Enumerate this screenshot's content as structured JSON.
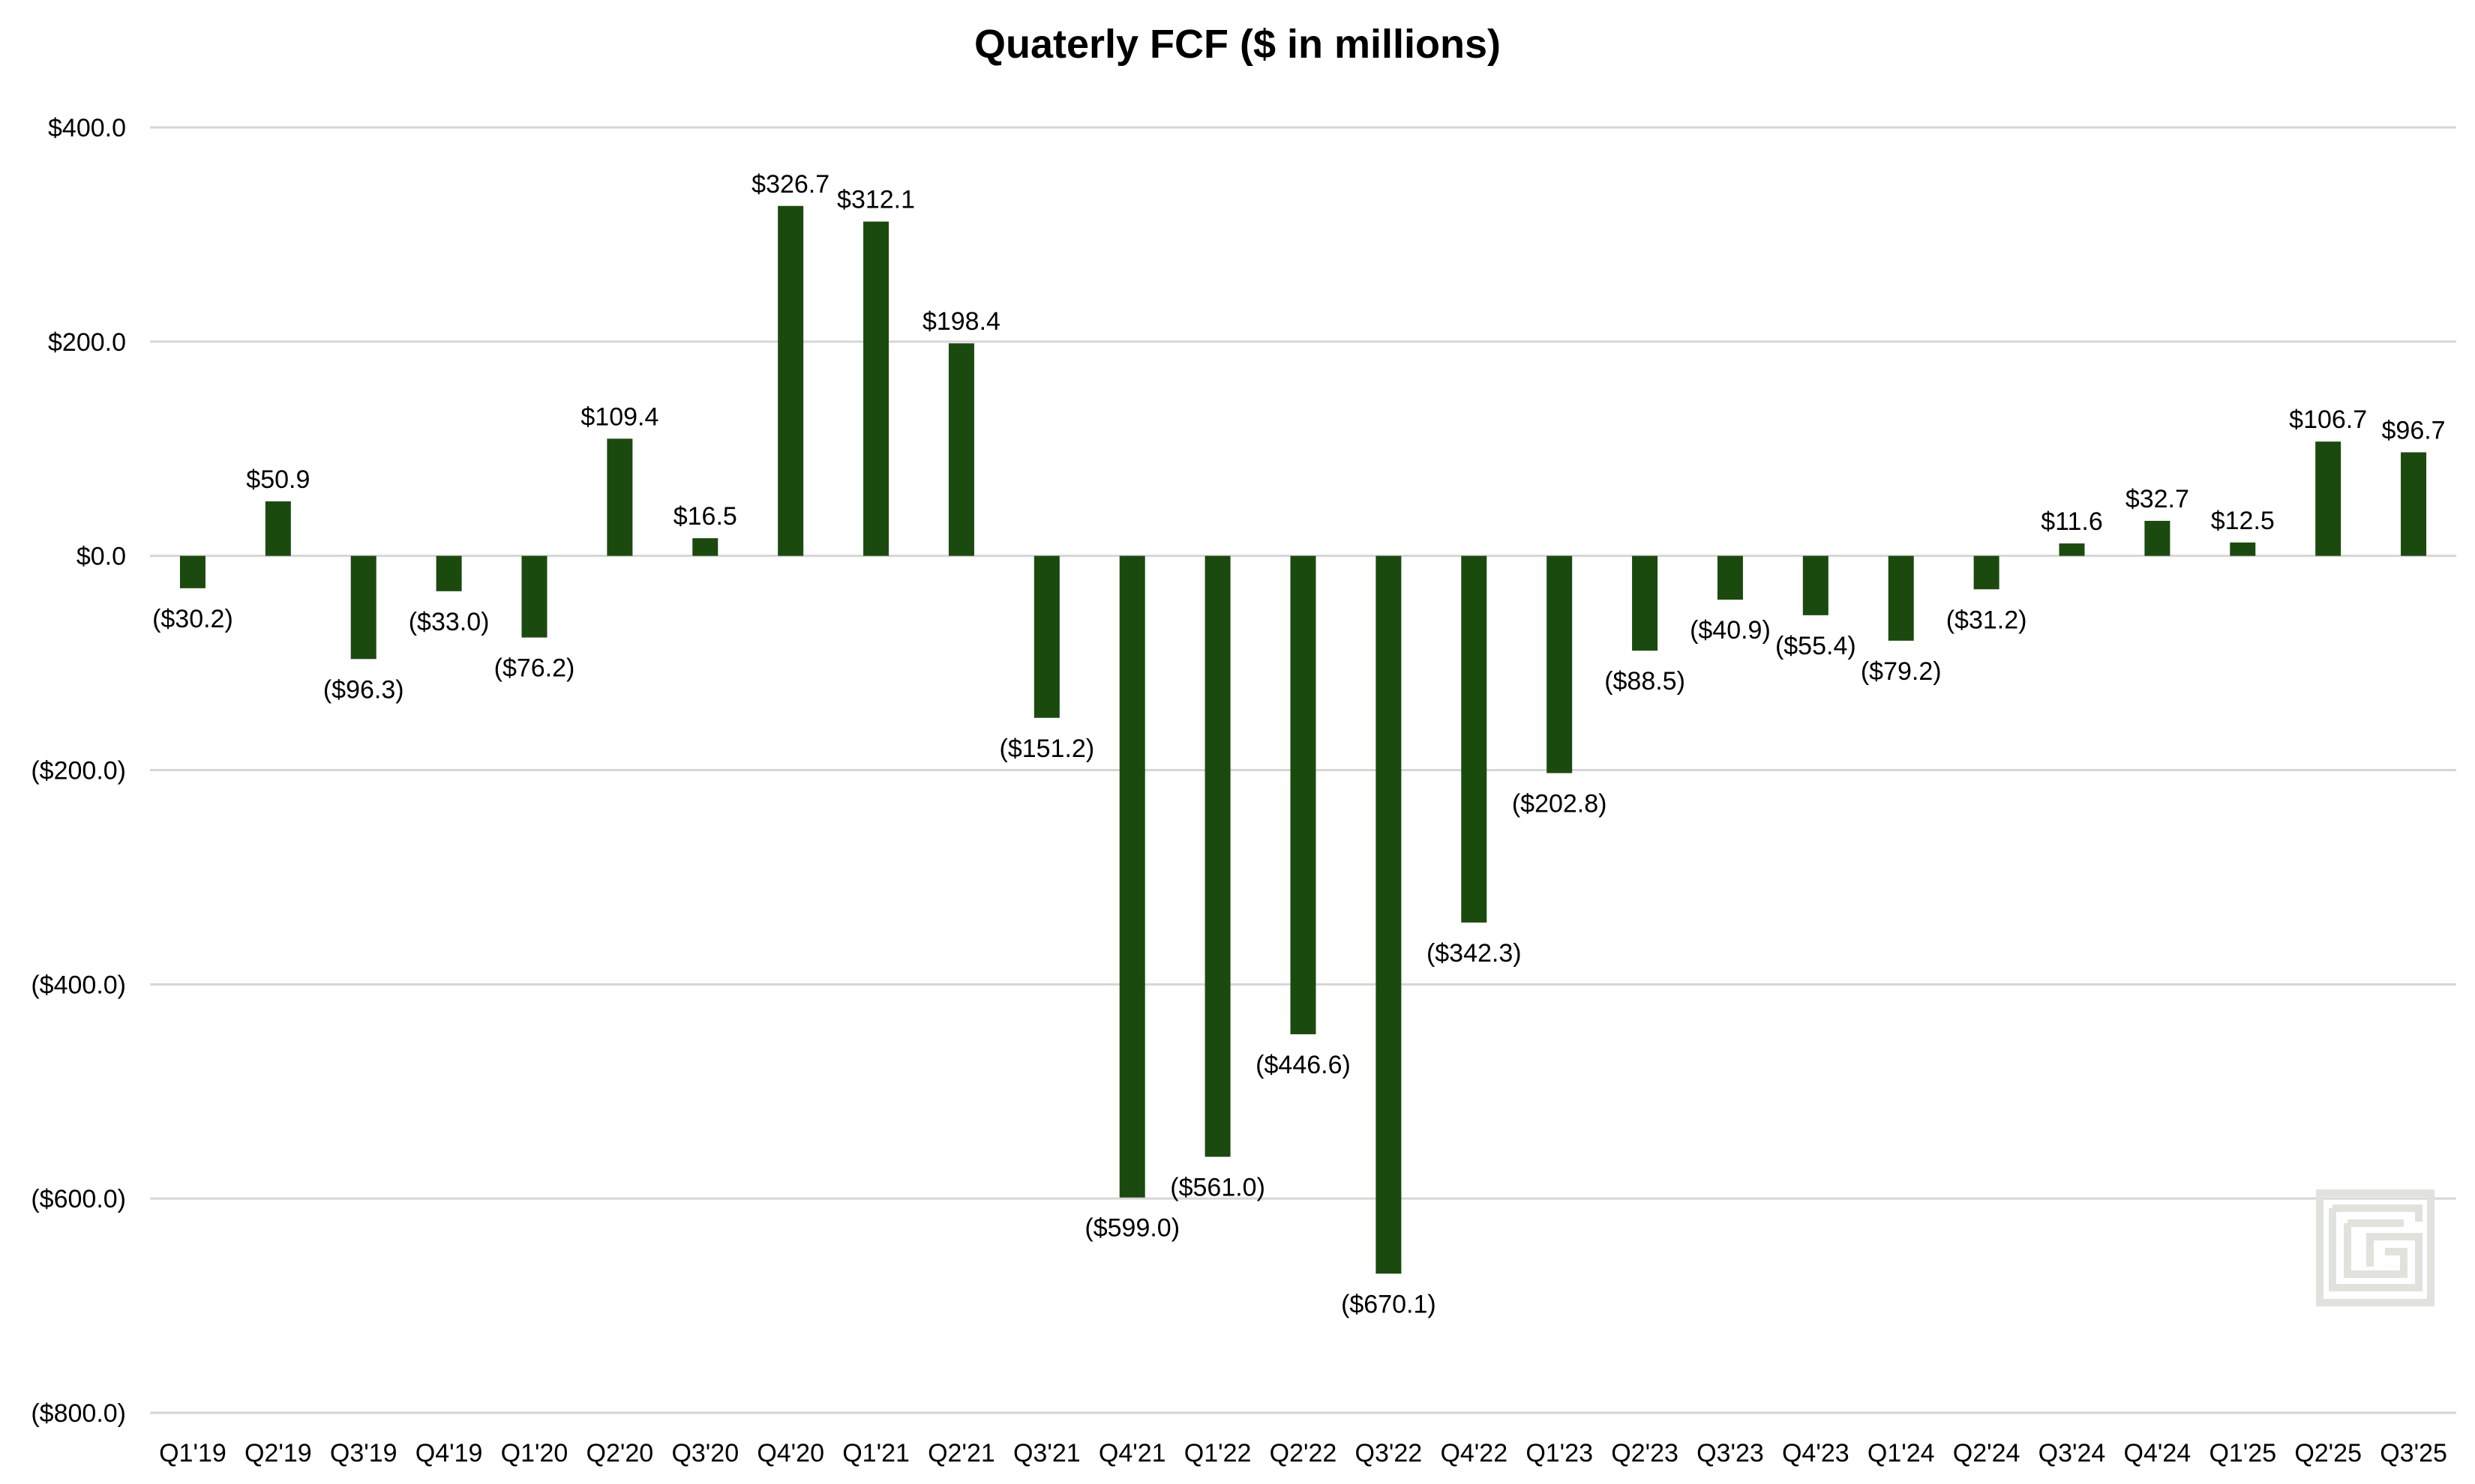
{
  "chart_data": {
    "type": "bar",
    "title": "Quaterly FCF ($ in millions)",
    "xlabel": "",
    "ylabel": "",
    "ylim": [
      -800,
      400
    ],
    "yticks": [
      400,
      200,
      0,
      -200,
      -400,
      -600,
      -800
    ],
    "ytick_labels": [
      "$400.0",
      "$200.0",
      "$0.0",
      "($200.0)",
      "($400.0)",
      "($600.0)",
      "($800.0)"
    ],
    "grid": true,
    "legend": "none",
    "bar_color": "#1b4a0e",
    "categories": [
      "Q1'19",
      "Q2'19",
      "Q3'19",
      "Q4'19",
      "Q1'20",
      "Q2'20",
      "Q3'20",
      "Q4'20",
      "Q1'21",
      "Q2'21",
      "Q3'21",
      "Q4'21",
      "Q1'22",
      "Q2'22",
      "Q3'22",
      "Q4'22",
      "Q1'23",
      "Q2'23",
      "Q3'23",
      "Q4'23",
      "Q1'24",
      "Q2'24",
      "Q3'24",
      "Q4'24",
      "Q1'25",
      "Q2'25",
      "Q3'25"
    ],
    "values": [
      -30.2,
      50.9,
      -96.3,
      -33.0,
      -76.2,
      109.4,
      16.5,
      326.7,
      312.1,
      198.4,
      -151.2,
      -599.0,
      -561.0,
      -446.6,
      -670.1,
      -342.3,
      -202.8,
      -88.5,
      -40.9,
      -55.4,
      -79.2,
      -31.2,
      11.6,
      32.7,
      12.5,
      106.7,
      96.7
    ],
    "data_labels": [
      "($30.2)",
      "$50.9",
      "($96.3)",
      "($33.0)",
      "($76.2)",
      "$109.4",
      "$16.5",
      "$326.7",
      "$312.1",
      "$198.4",
      "($151.2)",
      "($599.0)",
      "($561.0)",
      "($446.6)",
      "($670.1)",
      "($342.3)",
      "($202.8)",
      "($88.5)",
      "($40.9)",
      "($55.4)",
      "($79.2)",
      "($31.2)",
      "$11.6",
      "$32.7",
      "$12.5",
      "$106.7",
      "$96.7"
    ]
  },
  "watermark": {
    "color": "#dfe3dc",
    "icon": "grid-g-logo"
  }
}
